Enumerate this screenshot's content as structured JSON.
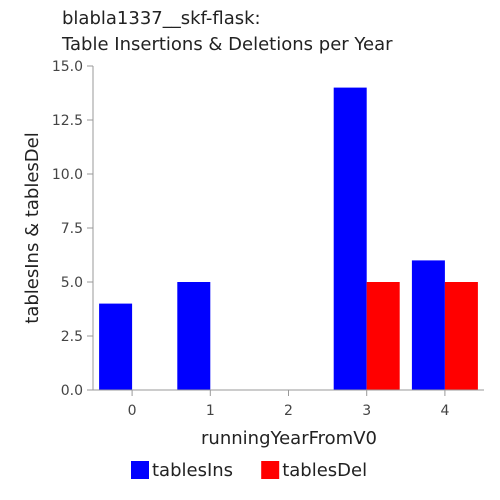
{
  "chart_data": {
    "type": "bar",
    "title_lines": [
      "blabla1337__skf-flask:",
      "Table Insertions & Deletions per Year"
    ],
    "xlabel": "runningYearFromV0",
    "ylabel": "tablesIns & tablesDel",
    "categories": [
      "0",
      "1",
      "2",
      "3",
      "4"
    ],
    "series": [
      {
        "name": "tablesIns",
        "color": "#0000ff",
        "values": [
          4,
          5,
          0,
          14,
          6
        ]
      },
      {
        "name": "tablesDel",
        "color": "#ff0000",
        "values": [
          0,
          0,
          0,
          5,
          5
        ]
      }
    ],
    "ylim": [
      0,
      15
    ],
    "yticks": [
      "0.0",
      "2.5",
      "5.0",
      "7.5",
      "10.0",
      "12.5",
      "15.0"
    ],
    "grid": false,
    "legend_position": "bottom-center"
  }
}
